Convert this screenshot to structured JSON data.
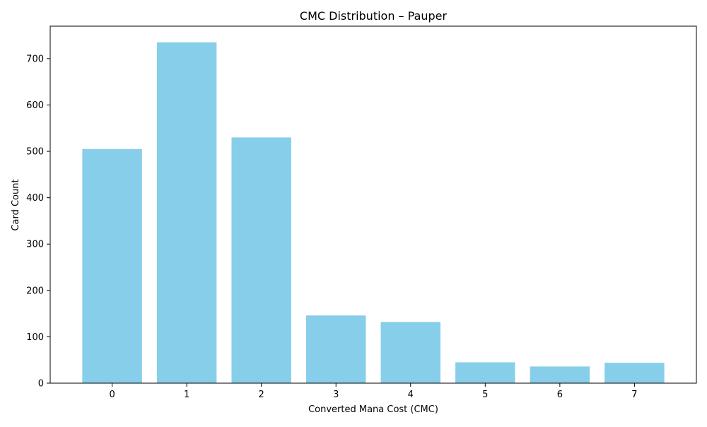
{
  "chart_data": {
    "type": "bar",
    "title": "CMC Distribution – Pauper",
    "xlabel": "Converted Mana Cost (CMC)",
    "ylabel": "Card Count",
    "categories": [
      "0",
      "1",
      "2",
      "3",
      "4",
      "5",
      "6",
      "7"
    ],
    "values": [
      505,
      735,
      530,
      146,
      132,
      45,
      36,
      44
    ],
    "ylim": [
      0,
      770
    ],
    "yticks": [
      0,
      100,
      200,
      300,
      400,
      500,
      600,
      700
    ],
    "grid": false,
    "legend": "none",
    "bar_color": "#87ceeb"
  }
}
